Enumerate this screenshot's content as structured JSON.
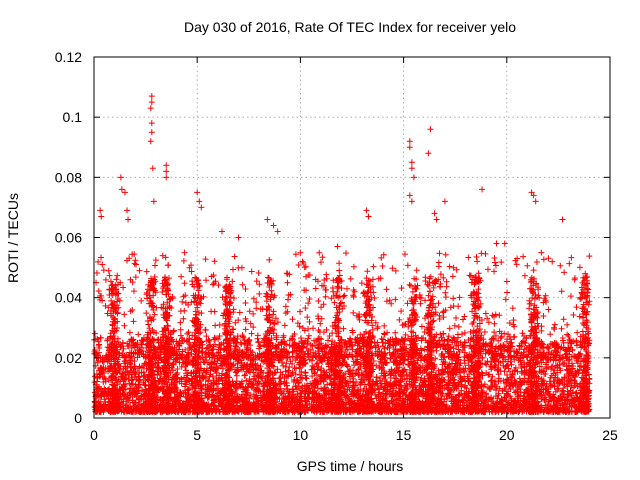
{
  "chart_data": {
    "type": "scatter",
    "title": "Day 030 of 2016, Rate Of TEC Index for receiver yelo",
    "xlabel": "GPS time / hours",
    "ylabel": "ROTI / TECUs",
    "xlim": [
      0,
      25
    ],
    "ylim": [
      0,
      0.12
    ],
    "x_ticks": [
      0,
      5,
      10,
      15,
      20,
      25
    ],
    "x_tick_labels": [
      "0",
      "5",
      "10",
      "15",
      "20",
      "25"
    ],
    "y_ticks": [
      0,
      0.02,
      0.04,
      0.06,
      0.08,
      0.1,
      0.12
    ],
    "y_tick_labels": [
      "0",
      "0.02",
      "0.04",
      "0.06",
      "0.08",
      "0.1",
      "0.12"
    ],
    "grid": true,
    "marker": "plus",
    "color": "#ff0000",
    "series": [
      {
        "name": "ROTI",
        "notable_points": [
          {
            "x": 2.8,
            "y": 0.107
          },
          {
            "x": 2.8,
            "y": 0.105
          },
          {
            "x": 2.75,
            "y": 0.103
          },
          {
            "x": 2.8,
            "y": 0.098
          },
          {
            "x": 2.8,
            "y": 0.095
          },
          {
            "x": 2.75,
            "y": 0.092
          },
          {
            "x": 2.85,
            "y": 0.083
          },
          {
            "x": 3.5,
            "y": 0.084
          },
          {
            "x": 3.5,
            "y": 0.082
          },
          {
            "x": 3.5,
            "y": 0.08
          },
          {
            "x": 1.3,
            "y": 0.08
          },
          {
            "x": 1.35,
            "y": 0.076
          },
          {
            "x": 1.5,
            "y": 0.075
          },
          {
            "x": 0.3,
            "y": 0.069
          },
          {
            "x": 0.35,
            "y": 0.067
          },
          {
            "x": 1.6,
            "y": 0.069
          },
          {
            "x": 1.65,
            "y": 0.066
          },
          {
            "x": 2.9,
            "y": 0.072
          },
          {
            "x": 5.0,
            "y": 0.075
          },
          {
            "x": 5.1,
            "y": 0.072
          },
          {
            "x": 5.2,
            "y": 0.07
          },
          {
            "x": 8.4,
            "y": 0.066
          },
          {
            "x": 8.7,
            "y": 0.064
          },
          {
            "x": 8.9,
            "y": 0.062
          },
          {
            "x": 13.2,
            "y": 0.069
          },
          {
            "x": 13.3,
            "y": 0.067
          },
          {
            "x": 15.3,
            "y": 0.092
          },
          {
            "x": 15.3,
            "y": 0.09
          },
          {
            "x": 15.4,
            "y": 0.085
          },
          {
            "x": 15.4,
            "y": 0.083
          },
          {
            "x": 15.5,
            "y": 0.08
          },
          {
            "x": 15.3,
            "y": 0.074
          },
          {
            "x": 15.4,
            "y": 0.072
          },
          {
            "x": 16.3,
            "y": 0.096
          },
          {
            "x": 16.2,
            "y": 0.088
          },
          {
            "x": 16.5,
            "y": 0.068
          },
          {
            "x": 16.6,
            "y": 0.066
          },
          {
            "x": 17.0,
            "y": 0.072
          },
          {
            "x": 18.8,
            "y": 0.076
          },
          {
            "x": 21.2,
            "y": 0.075
          },
          {
            "x": 21.3,
            "y": 0.074
          },
          {
            "x": 21.4,
            "y": 0.072
          },
          {
            "x": 22.7,
            "y": 0.066
          },
          {
            "x": 23.8,
            "y": 0.048
          },
          {
            "x": 0.1,
            "y": 0.045
          },
          {
            "x": 6.2,
            "y": 0.062
          },
          {
            "x": 7.0,
            "y": 0.06
          },
          {
            "x": 10.1,
            "y": 0.052
          },
          {
            "x": 11.8,
            "y": 0.057
          },
          {
            "x": 19.5,
            "y": 0.058
          },
          {
            "x": 19.9,
            "y": 0.058
          },
          {
            "x": 20.5,
            "y": 0.053
          },
          {
            "x": 22.2,
            "y": 0.052
          }
        ],
        "bulk_description_values": {
          "typical_range": [
            0.002,
            0.035
          ],
          "clusters_hours": [
            1.0,
            2.8,
            3.5,
            5.0,
            6.5,
            8.5,
            11.8,
            13.3,
            15.5,
            16.3,
            18.5,
            21.3,
            23.8
          ]
        }
      }
    ]
  }
}
